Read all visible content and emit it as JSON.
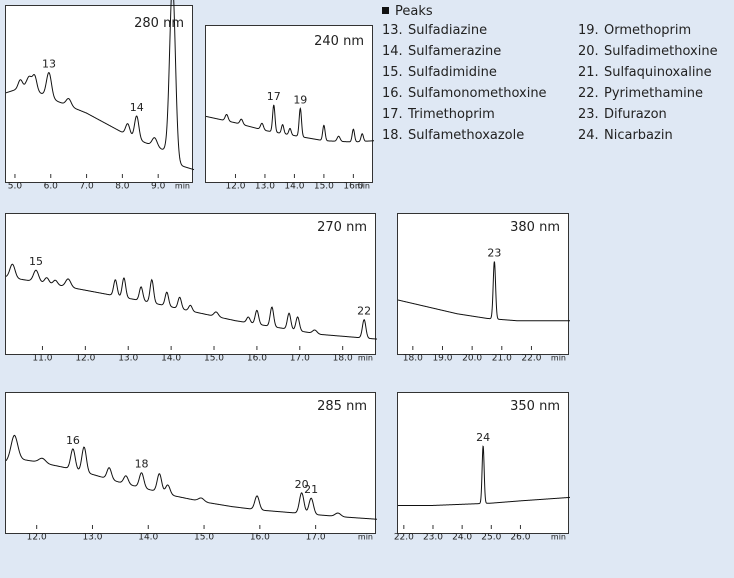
{
  "legend": {
    "heading": "Peaks",
    "items": [
      {
        "num": "13.",
        "name": "Sulfadiazine"
      },
      {
        "num": "14.",
        "name": "Sulfamerazine"
      },
      {
        "num": "15.",
        "name": "Sulfadimidine"
      },
      {
        "num": "16.",
        "name": "Sulfamonomethoxine"
      },
      {
        "num": "17.",
        "name": "Trimethoprim"
      },
      {
        "num": "18.",
        "name": "Sulfamethoxazole"
      },
      {
        "num": "19.",
        "name": "Ormethoprim"
      },
      {
        "num": "20.",
        "name": "Sulfadimethoxine"
      },
      {
        "num": "21.",
        "name": "Sulfaquinoxaline"
      },
      {
        "num": "22.",
        "name": "Pyrimethamine"
      },
      {
        "num": "23.",
        "name": "Difurazon"
      },
      {
        "num": "24.",
        "name": "Nicarbazin"
      }
    ]
  },
  "chart_data": [
    {
      "type": "line",
      "wavelength": "280 nm",
      "x_unit": "min",
      "xlim": [
        4.75,
        10.0
      ],
      "ylim": [
        0,
        1
      ],
      "xticks": [
        "5.0",
        "6.0",
        "7.0",
        "8.0",
        "9.0"
      ],
      "baseline": [
        [
          4.75,
          0.56
        ],
        [
          5.0,
          0.58
        ],
        [
          5.3,
          0.6
        ],
        [
          5.6,
          0.57
        ],
        [
          6.2,
          0.5
        ],
        [
          7.0,
          0.42
        ],
        [
          7.6,
          0.34
        ],
        [
          8.2,
          0.26
        ],
        [
          8.8,
          0.2
        ],
        [
          9.2,
          0.16
        ],
        [
          9.6,
          0.06
        ],
        [
          10.0,
          0.03
        ]
      ],
      "peaks": [
        {
          "x": 5.15,
          "h": 0.06,
          "w": 0.06
        },
        {
          "x": 5.4,
          "h": 0.08,
          "w": 0.07
        },
        {
          "x": 5.55,
          "h": 0.1,
          "w": 0.06
        },
        {
          "x": 5.95,
          "h": 0.17,
          "w": 0.07,
          "label": "13"
        },
        {
          "x": 6.5,
          "h": 0.05,
          "w": 0.07
        },
        {
          "x": 8.15,
          "h": 0.08,
          "w": 0.06
        },
        {
          "x": 8.4,
          "h": 0.16,
          "w": 0.06,
          "label": "14"
        },
        {
          "x": 8.9,
          "h": 0.06,
          "w": 0.07
        },
        {
          "x": 9.4,
          "h": 1.2,
          "w": 0.08
        }
      ]
    },
    {
      "type": "line",
      "wavelength": "240 nm",
      "x_unit": "min",
      "xlim": [
        11.0,
        16.7
      ],
      "ylim": [
        0,
        1
      ],
      "xticks": [
        "12.0",
        "13.0",
        "14.0",
        "15.0",
        "16.0"
      ],
      "baseline": [
        [
          11.0,
          0.45
        ],
        [
          12.0,
          0.4
        ],
        [
          13.0,
          0.34
        ],
        [
          14.0,
          0.3
        ],
        [
          15.0,
          0.26
        ],
        [
          16.0,
          0.25
        ],
        [
          16.7,
          0.26
        ]
      ],
      "peaks": [
        {
          "x": 11.7,
          "h": 0.05,
          "w": 0.05
        },
        {
          "x": 12.2,
          "h": 0.04,
          "w": 0.05
        },
        {
          "x": 12.9,
          "h": 0.05,
          "w": 0.05
        },
        {
          "x": 13.3,
          "h": 0.21,
          "w": 0.04,
          "label": "17"
        },
        {
          "x": 13.6,
          "h": 0.07,
          "w": 0.04
        },
        {
          "x": 13.85,
          "h": 0.05,
          "w": 0.04
        },
        {
          "x": 14.2,
          "h": 0.22,
          "w": 0.04,
          "label": "19"
        },
        {
          "x": 15.0,
          "h": 0.12,
          "w": 0.04
        },
        {
          "x": 15.5,
          "h": 0.04,
          "w": 0.05
        },
        {
          "x": 16.0,
          "h": 0.1,
          "w": 0.04
        },
        {
          "x": 16.3,
          "h": 0.06,
          "w": 0.04
        }
      ]
    },
    {
      "type": "line",
      "wavelength": "270 nm",
      "x_unit": "min",
      "xlim": [
        10.15,
        18.8
      ],
      "ylim": [
        0,
        1
      ],
      "xticks": [
        "11.0",
        "12.0",
        "13.0",
        "14.0",
        "15.0",
        "16.0",
        "17.0",
        "18.0"
      ],
      "baseline": [
        [
          10.15,
          0.6
        ],
        [
          10.5,
          0.58
        ],
        [
          11.5,
          0.52
        ],
        [
          12.5,
          0.45
        ],
        [
          13.5,
          0.38
        ],
        [
          14.5,
          0.3
        ],
        [
          15.5,
          0.22
        ],
        [
          16.5,
          0.16
        ],
        [
          17.5,
          0.1
        ],
        [
          18.8,
          0.06
        ]
      ],
      "peaks": [
        {
          "x": 10.3,
          "h": 0.12,
          "w": 0.06
        },
        {
          "x": 10.85,
          "h": 0.1,
          "w": 0.06,
          "label": "15"
        },
        {
          "x": 11.1,
          "h": 0.05,
          "w": 0.05
        },
        {
          "x": 11.3,
          "h": 0.04,
          "w": 0.05
        },
        {
          "x": 11.6,
          "h": 0.07,
          "w": 0.06
        },
        {
          "x": 12.7,
          "h": 0.14,
          "w": 0.04
        },
        {
          "x": 12.9,
          "h": 0.17,
          "w": 0.04
        },
        {
          "x": 13.3,
          "h": 0.12,
          "w": 0.04
        },
        {
          "x": 13.55,
          "h": 0.2,
          "w": 0.04
        },
        {
          "x": 13.9,
          "h": 0.12,
          "w": 0.04
        },
        {
          "x": 14.2,
          "h": 0.1,
          "w": 0.04
        },
        {
          "x": 14.45,
          "h": 0.05,
          "w": 0.04
        },
        {
          "x": 15.05,
          "h": 0.04,
          "w": 0.05
        },
        {
          "x": 15.8,
          "h": 0.05,
          "w": 0.04
        },
        {
          "x": 16.0,
          "h": 0.12,
          "w": 0.04
        },
        {
          "x": 16.35,
          "h": 0.17,
          "w": 0.04
        },
        {
          "x": 16.75,
          "h": 0.14,
          "w": 0.04
        },
        {
          "x": 16.95,
          "h": 0.12,
          "w": 0.04
        },
        {
          "x": 17.35,
          "h": 0.03,
          "w": 0.05
        },
        {
          "x": 18.5,
          "h": 0.16,
          "w": 0.04,
          "label": "22"
        }
      ]
    },
    {
      "type": "line",
      "wavelength": "380 nm",
      "x_unit": "min",
      "xlim": [
        17.5,
        23.3
      ],
      "ylim": [
        0,
        1
      ],
      "xticks": [
        "18.0",
        "19.0",
        "20.0",
        "21.0",
        "22.0"
      ],
      "baseline": [
        [
          17.5,
          0.4
        ],
        [
          18.5,
          0.34
        ],
        [
          19.5,
          0.28
        ],
        [
          20.5,
          0.24
        ],
        [
          21.5,
          0.22
        ],
        [
          23.3,
          0.22
        ]
      ],
      "peaks": [
        {
          "x": 20.75,
          "h": 0.5,
          "w": 0.04,
          "label": "23"
        }
      ]
    },
    {
      "type": "line",
      "wavelength": "285 nm",
      "x_unit": "min",
      "xlim": [
        11.45,
        18.1
      ],
      "ylim": [
        0,
        1
      ],
      "xticks": [
        "12.0",
        "13.0",
        "14.0",
        "15.0",
        "16.0",
        "17.0"
      ],
      "baseline": [
        [
          11.45,
          0.55
        ],
        [
          11.6,
          0.58
        ],
        [
          12.0,
          0.55
        ],
        [
          12.5,
          0.5
        ],
        [
          13.0,
          0.44
        ],
        [
          13.5,
          0.37
        ],
        [
          14.0,
          0.31
        ],
        [
          14.5,
          0.25
        ],
        [
          15.0,
          0.2
        ],
        [
          15.5,
          0.16
        ],
        [
          16.0,
          0.13
        ],
        [
          16.5,
          0.11
        ],
        [
          17.0,
          0.09
        ],
        [
          17.5,
          0.07
        ],
        [
          18.1,
          0.05
        ]
      ],
      "peaks": [
        {
          "x": 11.6,
          "h": 0.2,
          "w": 0.06
        },
        {
          "x": 12.1,
          "h": 0.04,
          "w": 0.06
        },
        {
          "x": 12.65,
          "h": 0.18,
          "w": 0.04,
          "label": "16"
        },
        {
          "x": 12.85,
          "h": 0.22,
          "w": 0.04
        },
        {
          "x": 13.3,
          "h": 0.1,
          "w": 0.04
        },
        {
          "x": 13.6,
          "h": 0.07,
          "w": 0.04
        },
        {
          "x": 13.88,
          "h": 0.13,
          "w": 0.04,
          "label": "18"
        },
        {
          "x": 14.2,
          "h": 0.16,
          "w": 0.04
        },
        {
          "x": 14.35,
          "h": 0.08,
          "w": 0.04
        },
        {
          "x": 14.95,
          "h": 0.03,
          "w": 0.05
        },
        {
          "x": 15.95,
          "h": 0.12,
          "w": 0.04
        },
        {
          "x": 16.75,
          "h": 0.18,
          "w": 0.04,
          "label": "20"
        },
        {
          "x": 16.92,
          "h": 0.14,
          "w": 0.04,
          "label": "21"
        },
        {
          "x": 17.4,
          "h": 0.03,
          "w": 0.05
        }
      ]
    },
    {
      "type": "line",
      "wavelength": "350 nm",
      "x_unit": "min",
      "xlim": [
        21.8,
        27.7
      ],
      "ylim": [
        0,
        1
      ],
      "xticks": [
        "22.0",
        "23.0",
        "24.0",
        "25.0",
        "26.0"
      ],
      "baseline": [
        [
          21.8,
          0.17
        ],
        [
          23.0,
          0.17
        ],
        [
          24.0,
          0.18
        ],
        [
          25.0,
          0.19
        ],
        [
          26.0,
          0.21
        ],
        [
          27.7,
          0.24
        ]
      ],
      "peaks": [
        {
          "x": 24.72,
          "h": 0.5,
          "w": 0.035,
          "label": "24"
        }
      ]
    }
  ]
}
